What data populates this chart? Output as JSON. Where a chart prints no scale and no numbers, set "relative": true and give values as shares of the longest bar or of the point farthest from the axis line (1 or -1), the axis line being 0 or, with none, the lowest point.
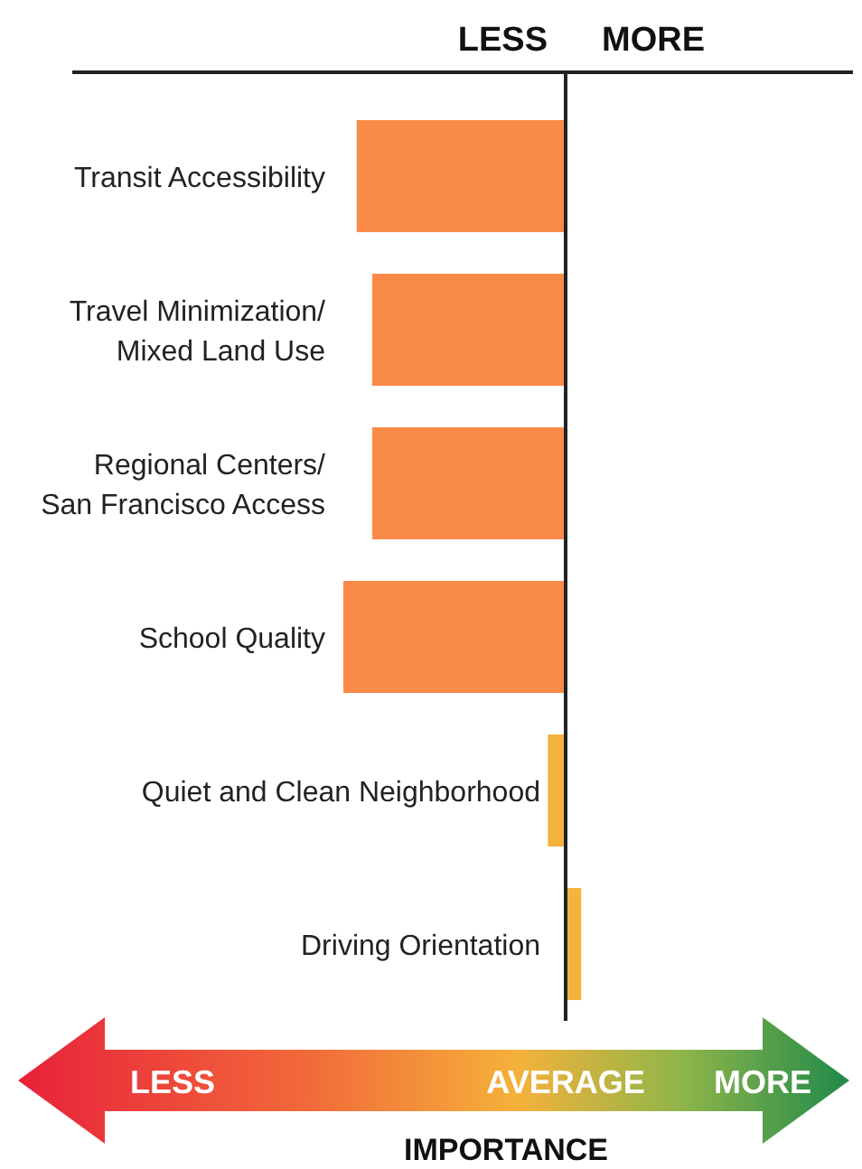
{
  "chart_data": {
    "type": "bar",
    "orientation": "horizontal",
    "relative": true,
    "categories": [
      "Transit Accessibility",
      "Travel Minimization/\nMixed Land Use",
      "Regional Centers/\nSan Francisco Access",
      "School Quality",
      "Quiet and Clean Neighborhood",
      "Driving Orientation"
    ],
    "values": [
      -0.94,
      -0.87,
      -0.87,
      -1,
      -0.08,
      0.07
    ],
    "colors": [
      "#f98a48",
      "#f98a48",
      "#f98a48",
      "#f98a48",
      "#f2b43c",
      "#f2b43c"
    ],
    "xlabel": "IMPORTANCE",
    "annotations": [
      "LESS",
      "MORE",
      "LESS",
      "AVERAGE",
      "MORE"
    ]
  }
}
